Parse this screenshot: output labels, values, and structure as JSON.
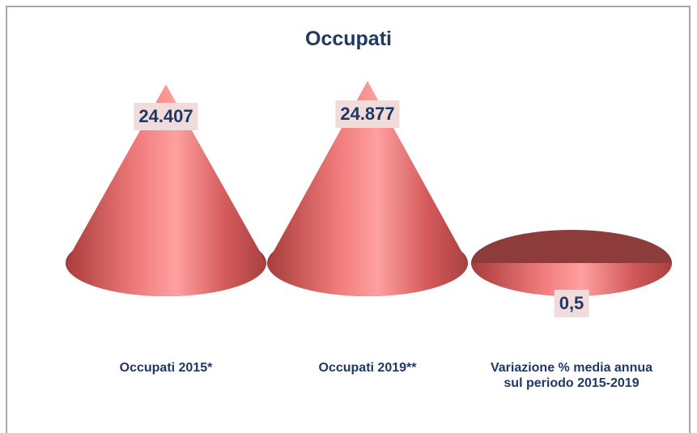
{
  "chart_data": {
    "type": "cone",
    "title": "Occupati",
    "categories": [
      "Occupati 2015*",
      "Occupati 2019**",
      "Variazione % media annua sul periodo 2015-2019"
    ],
    "values": [
      24407,
      24877,
      0.5
    ],
    "value_labels": [
      "24.407",
      "24.877",
      "0,5"
    ],
    "color": "#c9504f"
  }
}
